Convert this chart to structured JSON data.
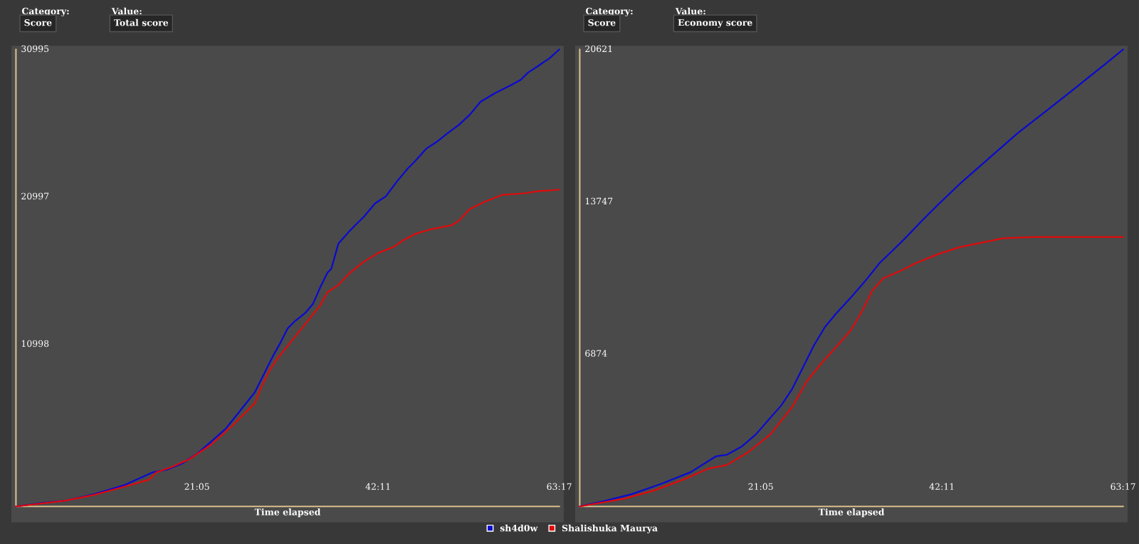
{
  "chart_data": [
    {
      "type": "line",
      "xlabel": "Time elapsed",
      "annotations": [
        "Category:",
        "Score",
        "Value:",
        "Total score"
      ],
      "xlim": [
        0,
        63.283
      ],
      "xticks": [
        {
          "value": 21.083,
          "label": "21:05"
        },
        {
          "value": 42.183,
          "label": "42:11"
        },
        {
          "value": 63.283,
          "label": "63:17"
        }
      ],
      "ylim": [
        0,
        30995
      ],
      "yticks": [
        10998,
        20997,
        30995
      ],
      "grid": false,
      "legend": "bottom",
      "marker": "none",
      "line_style": "solid",
      "series": [
        {
          "name": "sh4d0w",
          "color": "#0a0ad2",
          "x": [
            0,
            3.22,
            5.77,
            9.16,
            12.55,
            15.95,
            17.64,
            19.34,
            21.04,
            22.73,
            24.43,
            26.12,
            27.82,
            28.24,
            29.09,
            29.94,
            30.79,
            31.64,
            32.49,
            33.76,
            34.61,
            35.45,
            36.3,
            36.73,
            37.57,
            38.85,
            40.54,
            41.82,
            43.09,
            44.36,
            45.63,
            46.48,
            47.76,
            49.03,
            50.3,
            51.57,
            52.84,
            54.11,
            55.81,
            57.51,
            58.78,
            59.63,
            60.9,
            62.17,
            63.28
          ],
          "values": [
            0,
            250,
            390,
            840,
            1430,
            2320,
            2510,
            2910,
            3550,
            4390,
            5270,
            6500,
            7740,
            8230,
            9220,
            10200,
            11090,
            12070,
            12570,
            13160,
            13750,
            14880,
            15870,
            16120,
            17840,
            18680,
            19660,
            20550,
            21040,
            22030,
            22920,
            23410,
            24250,
            24740,
            25330,
            25870,
            26560,
            27450,
            28040,
            28530,
            28930,
            29420,
            29910,
            30410,
            30995
          ]
        },
        {
          "name": "Shalishuka Maurya",
          "color": "#e00a0a",
          "x": [
            0,
            5.77,
            9.16,
            12.55,
            15.52,
            16.37,
            18.07,
            20.19,
            22.73,
            25.28,
            27.82,
            28.67,
            29.52,
            30.36,
            32.06,
            33.76,
            35.45,
            36.3,
            37.57,
            38.85,
            40.54,
            42.24,
            43.94,
            45.21,
            46.48,
            48.18,
            50.72,
            51.57,
            52.84,
            54.54,
            56.66,
            59.2,
            60.9,
            63.28
          ],
          "values": [
            0,
            390,
            790,
            1330,
            1820,
            2320,
            2660,
            3200,
            4190,
            5520,
            7000,
            8230,
            9220,
            9960,
            11190,
            12420,
            13650,
            14540,
            15030,
            15820,
            16610,
            17200,
            17590,
            18090,
            18480,
            18780,
            19070,
            19370,
            20160,
            20650,
            21140,
            21240,
            21390,
            21490
          ]
        }
      ]
    },
    {
      "type": "line",
      "xlabel": "Time elapsed",
      "annotations": [
        "Category:",
        "Score",
        "Value:",
        "Economy score"
      ],
      "xlim": [
        0,
        63.283
      ],
      "xticks": [
        {
          "value": 21.083,
          "label": "21:05"
        },
        {
          "value": 42.183,
          "label": "42:11"
        },
        {
          "value": 63.283,
          "label": "63:17"
        }
      ],
      "ylim": [
        0,
        20621
      ],
      "yticks": [
        6874,
        13747,
        20621
      ],
      "grid": false,
      "legend": "bottom",
      "marker": "none",
      "line_style": "solid",
      "series": [
        {
          "name": "sh4d0w",
          "color": "#0a0ad2",
          "x": [
            0,
            2.71,
            6.1,
            9.49,
            12.88,
            15.85,
            17.12,
            18.81,
            20.51,
            22.2,
            23.47,
            24.75,
            26.02,
            27.29,
            28.56,
            29.83,
            31.53,
            33.22,
            34.92,
            37.46,
            40.0,
            41.69,
            44.24,
            47.63,
            51.02,
            54.41,
            57.8,
            61.19,
            63.28
          ],
          "values": [
            0,
            230,
            560,
            1020,
            1540,
            2260,
            2330,
            2690,
            3250,
            4000,
            4560,
            5310,
            6290,
            7280,
            8100,
            8690,
            9410,
            10160,
            10980,
            11930,
            12950,
            13600,
            14550,
            15700,
            16850,
            17870,
            18910,
            19960,
            20621
          ]
        },
        {
          "name": "Shalishuka Maurya",
          "color": "#e00a0a",
          "x": [
            0,
            5.25,
            8.64,
            12.03,
            15.0,
            17.12,
            19.66,
            22.2,
            24.75,
            26.44,
            28.14,
            29.83,
            31.53,
            32.8,
            34.07,
            35.34,
            37.46,
            39.15,
            41.69,
            44.24,
            46.78,
            49.32,
            52.71,
            63.28
          ],
          "values": [
            0,
            360,
            720,
            1210,
            1710,
            1870,
            2460,
            3250,
            4490,
            5640,
            6460,
            7180,
            7930,
            8750,
            9740,
            10290,
            10650,
            10980,
            11380,
            11700,
            11900,
            12100,
            12160,
            12160
          ]
        }
      ]
    }
  ]
}
